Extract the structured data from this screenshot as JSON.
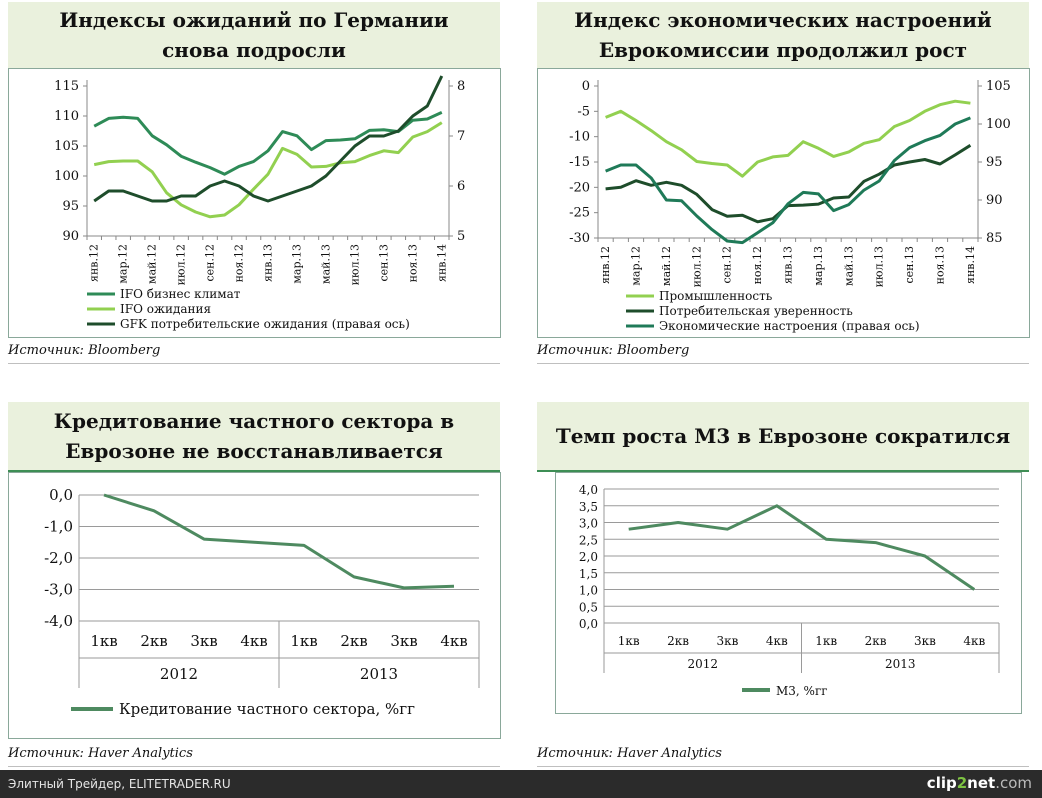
{
  "charts": [
    {
      "title": "Индексы ожиданий по Германии снова подросли",
      "source": "Источник: Bloomberg",
      "chart_data": {
        "type": "line",
        "categories": [
          "янв.12",
          "фев.12",
          "мар.12",
          "апр.12",
          "май.12",
          "июн.12",
          "июл.12",
          "авг.12",
          "сен.12",
          "окт.12",
          "ноя.12",
          "дек.12",
          "янв.13",
          "фев.13",
          "мар.13",
          "апр.13",
          "май.13",
          "июн.13",
          "июл.13",
          "авг.13",
          "сен.13",
          "окт.13",
          "ноя.13",
          "дек.13",
          "янв.14"
        ],
        "tick_labels": [
          "янв.12",
          "мар.12",
          "май.12",
          "июл.12",
          "сен.12",
          "ноя.12",
          "янв.13",
          "мар.13",
          "май.13",
          "июл.13",
          "сен.13",
          "ноя.13",
          "янв.14"
        ],
        "left_axis": {
          "min": 90,
          "max": 115,
          "ticks": [
            "90",
            "95",
            "100",
            "105",
            "110",
            "115"
          ]
        },
        "right_axis": {
          "min": 5,
          "max": 8,
          "ticks": [
            "5",
            "6",
            "7",
            "8"
          ]
        },
        "series": [
          {
            "name": "IFO бизнес климат",
            "axis": "left",
            "color": "#2e8b57",
            "values": [
              108.3,
              109.6,
              109.8,
              109.6,
              106.7,
              105.2,
              103.3,
              102.3,
              101.4,
              100.3,
              101.6,
              102.4,
              104.2,
              107.4,
              106.7,
              104.4,
              105.9,
              106.0,
              106.2,
              107.6,
              107.7,
              107.4,
              109.3,
              109.5,
              110.6
            ]
          },
          {
            "name": "IFO ожидания",
            "axis": "left",
            "color": "#92d050",
            "values": [
              101.9,
              102.4,
              102.5,
              102.5,
              100.7,
              97.2,
              95.2,
              94.0,
              93.2,
              93.5,
              95.2,
              97.8,
              100.3,
              104.6,
              103.6,
              101.5,
              101.6,
              102.2,
              102.4,
              103.4,
              104.2,
              103.9,
              106.5,
              107.4,
              108.9
            ]
          },
          {
            "name": "GFK потребительские ожидания (правая ось)",
            "axis": "right",
            "color": "#1e4d2b",
            "values": [
              5.7,
              5.9,
              5.9,
              5.8,
              5.7,
              5.7,
              5.8,
              5.8,
              6.0,
              6.1,
              6.0,
              5.8,
              5.7,
              5.8,
              5.9,
              6.0,
              6.2,
              6.5,
              6.8,
              7.0,
              7.0,
              7.1,
              7.4,
              7.6,
              8.2
            ]
          }
        ]
      }
    },
    {
      "title": "Индекс экономических настроений Еврокомиссии продолжил рост",
      "source": "Источник: Bloomberg",
      "chart_data": {
        "type": "line",
        "categories": [
          "янв.12",
          "фев.12",
          "мар.12",
          "апр.12",
          "май.12",
          "июн.12",
          "июл.12",
          "авг.12",
          "сен.12",
          "окт.12",
          "ноя.12",
          "дек.12",
          "янв.13",
          "фев.13",
          "мар.13",
          "апр.13",
          "май.13",
          "июн.13",
          "июл.13",
          "авг.13",
          "сен.13",
          "окт.13",
          "ноя.13",
          "дек.13",
          "янв.14"
        ],
        "tick_labels": [
          "янв.12",
          "мар.12",
          "май.12",
          "июл.12",
          "сен.12",
          "ноя.12",
          "янв.13",
          "мар.13",
          "май.13",
          "июл.13",
          "сен.13",
          "ноя.13",
          "янв.14"
        ],
        "left_axis": {
          "min": -30,
          "max": 0,
          "ticks": [
            "0",
            "-5",
            "-10",
            "-15",
            "-20",
            "-25",
            "-30"
          ]
        },
        "right_axis": {
          "min": 85,
          "max": 105,
          "ticks": [
            "85",
            "90",
            "95",
            "100",
            "105"
          ]
        },
        "series": [
          {
            "name": "Промышленность",
            "axis": "left",
            "color": "#92d050",
            "values": [
              -6.2,
              -5.0,
              -6.8,
              -8.8,
              -11.0,
              -12.6,
              -14.9,
              -15.3,
              -15.6,
              -17.8,
              -15.0,
              -14.0,
              -13.7,
              -11.0,
              -12.3,
              -13.9,
              -13.0,
              -11.3,
              -10.6,
              -8.0,
              -6.8,
              -5.0,
              -3.7,
              -3.0,
              -3.4
            ]
          },
          {
            "name": "Потребительская уверенность",
            "axis": "left",
            "color": "#1e4d2b",
            "values": [
              -20.3,
              -20.0,
              -18.7,
              -19.6,
              -19.0,
              -19.6,
              -21.4,
              -24.4,
              -25.7,
              -25.5,
              -26.8,
              -26.2,
              -23.6,
              -23.5,
              -23.3,
              -22.1,
              -21.9,
              -18.8,
              -17.4,
              -15.6,
              -15.0,
              -14.5,
              -15.4,
              -13.6,
              -11.7
            ]
          },
          {
            "name": "Экономические настроения (правая ось)",
            "axis": "right",
            "color": "#1f7a58",
            "values": [
              93.8,
              94.6,
              94.6,
              92.9,
              90.0,
              89.9,
              87.9,
              86.1,
              84.6,
              84.4,
              85.7,
              87.0,
              89.5,
              91.0,
              90.8,
              88.6,
              89.4,
              91.3,
              92.5,
              95.2,
              96.9,
              97.8,
              98.5,
              100.0,
              100.8
            ]
          }
        ]
      }
    },
    {
      "title": "Кредитование частного сектора в Еврозоне не восстанавливается",
      "source": "Источник: Haver Analytics",
      "chart_data": {
        "type": "line",
        "categories": [
          "1кв",
          "2кв",
          "3кв",
          "4кв",
          "1кв",
          "2кв",
          "3кв",
          "4кв"
        ],
        "groups": [
          "2012",
          "2013"
        ],
        "y_axis": {
          "min": -4.0,
          "max": 0.0,
          "ticks": [
            "0,0",
            "-1,0",
            "-2,0",
            "-3,0",
            "-4,0"
          ]
        },
        "series": [
          {
            "name": "Кредитование частного сектора, %гг",
            "color": "#4e8a60",
            "values": [
              0.0,
              -0.5,
              -1.4,
              -1.5,
              -1.6,
              -2.6,
              -2.95,
              -2.9
            ]
          }
        ]
      }
    },
    {
      "title": "Темп роста М3 в Еврозоне сократился",
      "source": "Источник: Haver Analytics",
      "chart_data": {
        "type": "line",
        "categories": [
          "1кв",
          "2кв",
          "3кв",
          "4кв",
          "1кв",
          "2кв",
          "3кв",
          "4кв"
        ],
        "groups": [
          "2012",
          "2013"
        ],
        "y_axis": {
          "min": 0.0,
          "max": 4.0,
          "ticks": [
            "0,0",
            "0,5",
            "1,0",
            "1,5",
            "2,0",
            "2,5",
            "3,0",
            "3,5",
            "4,0"
          ]
        },
        "series": [
          {
            "name": "М3, %гг",
            "color": "#4e8a60",
            "values": [
              2.8,
              3.0,
              2.8,
              3.5,
              2.5,
              2.4,
              2.0,
              1.0
            ]
          }
        ]
      }
    }
  ],
  "footer": {
    "site": "Элитный Трейдер, ELITETRADER.RU",
    "logo_a": "clip",
    "logo_b": "2",
    "logo_c": "net",
    "logo_d": ".com"
  }
}
